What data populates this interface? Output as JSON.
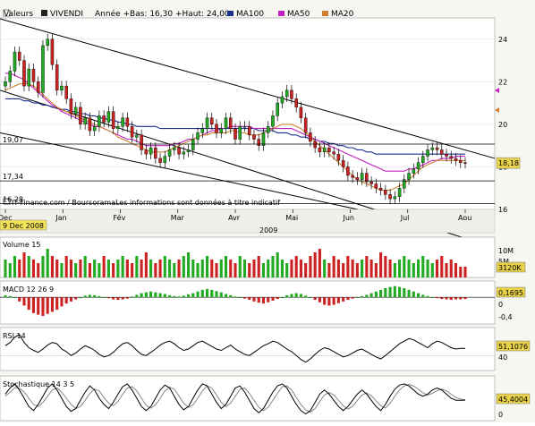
{
  "header": {
    "label": "Valeurs",
    "symbol": "VIVENDI",
    "range_text": "Année +Bas: 16,30 +Haut: 24,00",
    "ma100": {
      "label": "MA100",
      "color": "#1a2f8f"
    },
    "ma50": {
      "label": "MA50",
      "color": "#c020c0"
    },
    "ma20": {
      "label": "MA20",
      "color": "#d08030"
    }
  },
  "chart_data": [
    {
      "type": "candlestick",
      "panel": "price",
      "y_ticks": [
        "24",
        "22",
        "20",
        "18",
        "16"
      ],
      "ylim": [
        16,
        25
      ],
      "left_levels": [
        "19,07",
        "17,34",
        "16,28"
      ],
      "left_level_values": [
        19.07,
        17.34,
        16.28
      ],
      "last_value": "18,18",
      "last_value_num": 18.18,
      "x_months": [
        "Dec",
        "Jan",
        "Fév",
        "Mar",
        "Avr",
        "Mai",
        "Jun",
        "Jul",
        "Aou"
      ],
      "year_label": "2009",
      "date_badge": "9 Dec 2008",
      "source": "IT-Finance.com / BoursoramaLes informations sont données à titre indicatif",
      "closes": [
        22.0,
        22.5,
        23.4,
        23.0,
        21.8,
        22.6,
        22.0,
        21.5,
        23.7,
        24.0,
        22.8,
        21.6,
        21.8,
        21.2,
        20.5,
        20.8,
        20.0,
        20.3,
        19.7,
        19.9,
        20.4,
        20.1,
        20.6,
        19.8,
        19.9,
        20.3,
        19.9,
        19.4,
        19.5,
        18.8,
        18.6,
        18.9,
        18.4,
        18.2,
        18.5,
        18.8,
        18.9,
        18.6,
        18.7,
        18.8,
        19.3,
        19.6,
        19.8,
        20.3,
        20.0,
        19.6,
        19.8,
        20.3,
        19.8,
        19.3,
        19.9,
        19.9,
        19.5,
        19.3,
        19.0,
        19.6,
        19.9,
        20.4,
        21.0,
        21.3,
        21.6,
        21.2,
        20.8,
        20.3,
        19.6,
        19.2,
        18.9,
        18.7,
        18.9,
        18.7,
        18.6,
        18.3,
        18.0,
        17.6,
        17.5,
        17.4,
        17.7,
        17.3,
        17.2,
        17.0,
        16.9,
        16.7,
        16.5,
        16.6,
        17.0,
        17.4,
        17.7,
        17.9,
        18.2,
        18.5,
        18.8,
        18.9,
        18.8,
        18.6,
        18.5,
        18.4,
        18.3,
        18.2,
        18.18
      ],
      "ma20": [
        21.6,
        21.7,
        21.8,
        21.9,
        21.9,
        21.9,
        21.8,
        21.6,
        21.4,
        21.2,
        21.0,
        20.8,
        20.7,
        20.6,
        20.5,
        20.4,
        20.3,
        20.2,
        20.1,
        20.0,
        19.9,
        19.8,
        19.7,
        19.6,
        19.4,
        19.3,
        19.2,
        19.1,
        19.0,
        18.9,
        18.8,
        18.7,
        18.7,
        18.7,
        18.7,
        18.8,
        18.9,
        19.0,
        19.1,
        19.2,
        19.3,
        19.4,
        19.5,
        19.5,
        19.6,
        19.6,
        19.6,
        19.6,
        19.7,
        19.7,
        19.6,
        19.6,
        19.5,
        19.5,
        19.5,
        19.6,
        19.7,
        19.8,
        19.9,
        20.0,
        20.0,
        20.0,
        19.9,
        19.8,
        19.6,
        19.4,
        19.2,
        19.0,
        18.8,
        18.6,
        18.4,
        18.2,
        18.0,
        17.8,
        17.6,
        17.4,
        17.3,
        17.2,
        17.1,
        17.0,
        16.9,
        16.9,
        16.9,
        17.0,
        17.1,
        17.2,
        17.4,
        17.6,
        17.8,
        18.0,
        18.1,
        18.2,
        18.3,
        18.3,
        18.3,
        18.3,
        18.3,
        18.3,
        18.3
      ],
      "ma50": [
        22.4,
        22.4,
        22.3,
        22.2,
        22.1,
        21.9,
        21.7,
        21.5,
        21.3,
        21.1,
        20.9,
        20.8,
        20.6,
        20.5,
        20.4,
        20.3,
        20.2,
        20.1,
        20.0,
        19.9,
        19.9,
        19.8,
        19.7,
        19.6,
        19.5,
        19.4,
        19.3,
        19.3,
        19.2,
        19.1,
        19.0,
        19.0,
        19.0,
        19.0,
        19.0,
        19.0,
        19.1,
        19.1,
        19.2,
        19.3,
        19.3,
        19.4,
        19.5,
        19.6,
        19.7,
        19.7,
        19.8,
        19.8,
        19.9,
        19.9,
        19.9,
        19.9,
        19.9,
        19.8,
        19.8,
        19.8,
        19.8,
        19.8,
        19.8,
        19.8,
        19.8,
        19.8,
        19.7,
        19.6,
        19.5,
        19.4,
        19.3,
        19.2,
        19.1,
        19.0,
        18.9,
        18.8,
        18.7,
        18.6,
        18.5,
        18.4,
        18.3,
        18.2,
        18.1,
        18.0,
        17.9,
        17.8,
        17.8,
        17.8,
        17.8,
        17.8,
        17.9,
        17.9,
        18.0,
        18.1,
        18.2,
        18.3,
        18.3,
        18.4,
        18.4,
        18.4,
        18.5,
        18.5,
        18.5
      ],
      "ma100": [
        21.2,
        21.2,
        21.2,
        21.2,
        21.1,
        21.1,
        21.0,
        21.0,
        20.9,
        20.9,
        20.8,
        20.8,
        20.7,
        20.7,
        20.6,
        20.6,
        20.5,
        20.5,
        20.4,
        20.4,
        20.3,
        20.3,
        20.2,
        20.2,
        20.1,
        20.1,
        20.0,
        20.0,
        19.9,
        19.9,
        19.9,
        19.9,
        19.9,
        19.8,
        19.8,
        19.8,
        19.8,
        19.8,
        19.8,
        19.8,
        19.8,
        19.8,
        19.8,
        19.8,
        19.8,
        19.8,
        19.8,
        19.8,
        19.8,
        19.8,
        19.8,
        19.8,
        19.8,
        19.8,
        19.7,
        19.7,
        19.7,
        19.7,
        19.6,
        19.6,
        19.6,
        19.5,
        19.5,
        19.4,
        19.4,
        19.3,
        19.3,
        19.2,
        19.2,
        19.1,
        19.1,
        19.0,
        19.0,
        18.9,
        18.9,
        18.8,
        18.8,
        18.7,
        18.7,
        18.6,
        18.6,
        18.6,
        18.6,
        18.6,
        18.6,
        18.6,
        18.6,
        18.6,
        18.6,
        18.6,
        18.6,
        18.6,
        18.6,
        18.6,
        18.6,
        18.6,
        18.6,
        18.6,
        18.6
      ]
    },
    {
      "type": "bar",
      "panel": "volume",
      "title": "Volume 15",
      "y_ticks": [
        "10M",
        "5M"
      ],
      "ylim": [
        0,
        10
      ],
      "last_value": "3120K",
      "values": [
        5,
        4,
        6,
        5,
        7,
        6,
        5,
        4,
        6,
        8,
        6,
        5,
        4,
        6,
        5,
        4,
        5,
        6,
        4,
        5,
        4,
        6,
        5,
        4,
        5,
        6,
        5,
        4,
        6,
        5,
        7,
        5,
        4,
        5,
        6,
        5,
        4,
        5,
        6,
        7,
        5,
        4,
        5,
        6,
        5,
        4,
        5,
        6,
        5,
        4,
        6,
        5,
        4,
        5,
        6,
        4,
        5,
        6,
        7,
        5,
        4,
        5,
        6,
        5,
        4,
        6,
        7,
        8,
        5,
        4,
        6,
        5,
        4,
        6,
        5,
        4,
        5,
        6,
        5,
        4,
        7,
        6,
        5,
        4,
        5,
        6,
        5,
        4,
        5,
        6,
        5,
        4,
        5,
        6,
        4,
        5,
        4,
        3,
        3
      ]
    },
    {
      "type": "bar",
      "panel": "macd",
      "title": "MACD 12 26 9",
      "y_ticks": [
        "0",
        "-0,4"
      ],
      "ylim": [
        -0.6,
        0.35
      ],
      "last_value": "0,1695",
      "values": [
        0.05,
        0.03,
        0.0,
        -0.1,
        -0.2,
        -0.3,
        -0.38,
        -0.42,
        -0.45,
        -0.4,
        -0.35,
        -0.3,
        -0.22,
        -0.15,
        -0.1,
        -0.05,
        0.0,
        0.04,
        0.06,
        0.05,
        0.03,
        0.0,
        -0.02,
        -0.05,
        -0.06,
        -0.05,
        -0.03,
        0.02,
        0.06,
        0.1,
        0.12,
        0.14,
        0.12,
        0.1,
        0.08,
        0.05,
        0.03,
        0.02,
        0.04,
        0.07,
        0.1,
        0.14,
        0.18,
        0.2,
        0.18,
        0.15,
        0.12,
        0.08,
        0.05,
        0.02,
        0.0,
        -0.03,
        -0.06,
        -0.1,
        -0.13,
        -0.15,
        -0.12,
        -0.08,
        -0.04,
        0.0,
        0.05,
        0.08,
        0.1,
        0.08,
        0.04,
        0.0,
        -0.06,
        -0.12,
        -0.18,
        -0.2,
        -0.18,
        -0.14,
        -0.1,
        -0.06,
        -0.03,
        0.0,
        0.03,
        0.06,
        0.1,
        0.14,
        0.18,
        0.22,
        0.25,
        0.27,
        0.25,
        0.22,
        0.18,
        0.14,
        0.1,
        0.06,
        0.03,
        0.0,
        -0.02,
        -0.04,
        -0.05,
        -0.06,
        -0.05,
        -0.05,
        -0.04
      ]
    },
    {
      "type": "line",
      "panel": "rsi",
      "title": "RSI 14",
      "y_ticks": [
        "40"
      ],
      "ylim": [
        20,
        80
      ],
      "last_value": "51,1076",
      "values": [
        55,
        60,
        68,
        72,
        60,
        52,
        48,
        45,
        50,
        56,
        60,
        58,
        50,
        46,
        40,
        44,
        50,
        55,
        52,
        48,
        42,
        38,
        40,
        45,
        52,
        58,
        60,
        55,
        48,
        42,
        40,
        45,
        50,
        56,
        60,
        62,
        58,
        52,
        48,
        50,
        55,
        60,
        62,
        58,
        54,
        50,
        48,
        52,
        56,
        50,
        46,
        42,
        40,
        45,
        50,
        55,
        58,
        62,
        60,
        55,
        50,
        46,
        40,
        34,
        30,
        35,
        42,
        48,
        52,
        50,
        46,
        42,
        38,
        40,
        44,
        48,
        50,
        46,
        42,
        38,
        35,
        40,
        46,
        52,
        58,
        62,
        66,
        64,
        60,
        56,
        52,
        58,
        62,
        60,
        56,
        52,
        50,
        51,
        51.1
      ]
    },
    {
      "type": "line",
      "panel": "stochastic",
      "title": "Stochastique 14 3 5",
      "y_ticks": [
        "0"
      ],
      "ylim": [
        0,
        100
      ],
      "last_value": "45,4004",
      "k": [
        60,
        75,
        85,
        70,
        50,
        30,
        20,
        35,
        55,
        75,
        85,
        70,
        50,
        30,
        18,
        25,
        45,
        65,
        80,
        70,
        50,
        35,
        25,
        40,
        60,
        78,
        85,
        70,
        50,
        30,
        20,
        30,
        50,
        70,
        82,
        75,
        55,
        35,
        22,
        30,
        50,
        70,
        85,
        80,
        60,
        40,
        25,
        35,
        55,
        75,
        80,
        65,
        45,
        25,
        15,
        25,
        45,
        65,
        80,
        85,
        75,
        55,
        35,
        20,
        12,
        20,
        40,
        60,
        70,
        60,
        45,
        30,
        20,
        30,
        45,
        60,
        70,
        60,
        45,
        30,
        20,
        35,
        55,
        72,
        82,
        85,
        80,
        70,
        60,
        55,
        60,
        70,
        75,
        70,
        60,
        50,
        45,
        45,
        45.4
      ],
      "d": [
        55,
        65,
        75,
        75,
        65,
        50,
        35,
        30,
        40,
        55,
        70,
        75,
        65,
        50,
        35,
        25,
        30,
        45,
        62,
        72,
        68,
        52,
        38,
        32,
        42,
        60,
        75,
        78,
        68,
        50,
        33,
        26,
        34,
        50,
        68,
        77,
        72,
        55,
        38,
        28,
        34,
        50,
        68,
        80,
        75,
        58,
        40,
        30,
        38,
        55,
        72,
        75,
        62,
        45,
        28,
        20,
        28,
        45,
        62,
        78,
        80,
        70,
        52,
        35,
        22,
        16,
        25,
        42,
        58,
        64,
        58,
        45,
        32,
        24,
        30,
        45,
        58,
        63,
        56,
        44,
        32,
        26,
        38,
        55,
        70,
        80,
        84,
        80,
        72,
        63,
        58,
        62,
        68,
        72,
        68,
        60,
        52,
        48,
        46
      ]
    }
  ]
}
